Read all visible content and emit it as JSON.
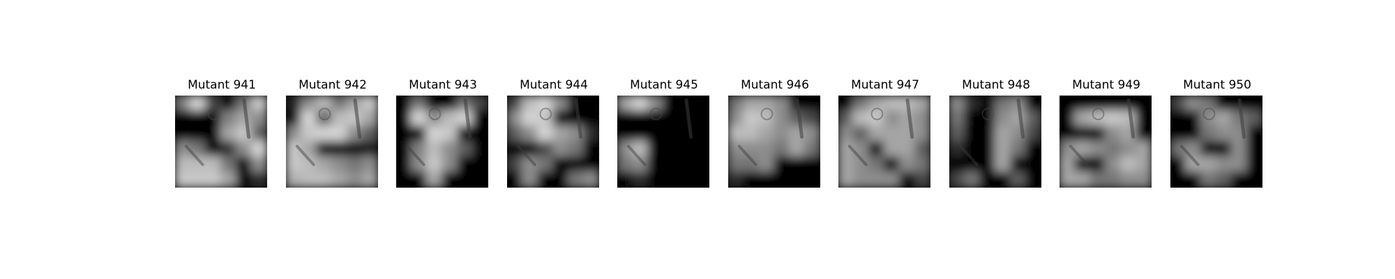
{
  "panels": [
    {
      "title": "Mutant 941",
      "pattern": [
        [
          0.55,
          0.9,
          0.3,
          0.0,
          0.5,
          0.85
        ],
        [
          0.0,
          0.0,
          0.0,
          0.55,
          0.7,
          0.6
        ],
        [
          0.0,
          0.0,
          0.0,
          0.7,
          0.85,
          0.4
        ],
        [
          0.6,
          0.5,
          0.0,
          0.2,
          0.6,
          0.9
        ],
        [
          0.8,
          0.8,
          0.8,
          0.5,
          0.0,
          0.6
        ],
        [
          0.85,
          0.85,
          0.85,
          0.7,
          0.0,
          0.2
        ]
      ]
    },
    {
      "title": "Mutant 942",
      "pattern": [
        [
          0.15,
          0.6,
          0.8,
          0.5,
          0.7,
          0.85
        ],
        [
          0.1,
          0.9,
          0.4,
          0.8,
          0.85,
          0.7
        ],
        [
          0.6,
          0.85,
          0.9,
          0.9,
          0.6,
          0.4
        ],
        [
          0.85,
          0.7,
          0.0,
          0.0,
          0.0,
          0.1
        ],
        [
          0.85,
          0.8,
          0.7,
          0.6,
          0.5,
          0.6
        ],
        [
          0.75,
          0.8,
          0.8,
          0.7,
          0.6,
          0.7
        ]
      ]
    },
    {
      "title": "Mutant 943",
      "pattern": [
        [
          0.0,
          0.5,
          0.0,
          0.0,
          0.5,
          0.3
        ],
        [
          0.0,
          0.9,
          0.6,
          0.8,
          0.9,
          0.0
        ],
        [
          0.0,
          0.0,
          0.9,
          0.85,
          0.0,
          0.0
        ],
        [
          0.0,
          0.55,
          0.8,
          0.6,
          0.4,
          0.0
        ],
        [
          0.0,
          0.6,
          0.85,
          0.6,
          0.0,
          0.0
        ],
        [
          0.0,
          0.0,
          0.7,
          0.0,
          0.0,
          0.0
        ]
      ]
    },
    {
      "title": "Mutant 944",
      "pattern": [
        [
          0.3,
          0.8,
          0.9,
          0.6,
          0.0,
          0.0
        ],
        [
          0.6,
          0.9,
          0.85,
          0.0,
          0.0,
          0.0
        ],
        [
          0.4,
          0.6,
          0.9,
          0.7,
          0.6,
          0.2
        ],
        [
          0.0,
          0.0,
          0.3,
          0.6,
          0.5,
          0.0
        ],
        [
          0.3,
          0.6,
          0.5,
          0.0,
          0.0,
          0.0
        ],
        [
          0.0,
          0.6,
          0.0,
          0.0,
          0.5,
          0.6
        ]
      ]
    },
    {
      "title": "Mutant 945",
      "pattern": [
        [
          0.7,
          0.9,
          0.6,
          0.0,
          0.0,
          0.0
        ],
        [
          0.0,
          0.0,
          0.0,
          0.0,
          0.0,
          0.0
        ],
        [
          0.0,
          0.0,
          0.0,
          0.0,
          0.0,
          0.0
        ],
        [
          0.6,
          0.8,
          0.0,
          0.0,
          0.0,
          0.0
        ],
        [
          0.5,
          0.6,
          0.0,
          0.0,
          0.0,
          0.0
        ],
        [
          0.0,
          0.2,
          0.0,
          0.0,
          0.0,
          0.0
        ]
      ]
    },
    {
      "title": "Mutant 946",
      "pattern": [
        [
          0.5,
          0.7,
          0.7,
          0.6,
          0.0,
          0.0
        ],
        [
          0.6,
          0.85,
          0.8,
          0.6,
          0.4,
          0.3
        ],
        [
          0.8,
          0.8,
          0.7,
          0.6,
          0.7,
          0.6
        ],
        [
          0.6,
          0.6,
          0.6,
          0.5,
          0.7,
          0.5
        ],
        [
          0.5,
          0.5,
          0.6,
          0.0,
          0.0,
          0.0
        ],
        [
          0.2,
          0.0,
          0.0,
          0.0,
          0.0,
          0.0
        ]
      ]
    },
    {
      "title": "Mutant 947",
      "pattern": [
        [
          0.0,
          0.5,
          0.7,
          0.8,
          0.8,
          0.7
        ],
        [
          0.4,
          0.8,
          0.85,
          0.6,
          0.7,
          0.6
        ],
        [
          0.6,
          0.4,
          0.7,
          0.7,
          0.7,
          0.6
        ],
        [
          0.7,
          0.6,
          0.0,
          0.7,
          0.7,
          0.4
        ],
        [
          0.7,
          0.6,
          0.5,
          0.0,
          0.6,
          0.5
        ],
        [
          0.7,
          0.6,
          0.6,
          0.6,
          0.0,
          0.3
        ]
      ]
    },
    {
      "title": "Mutant 948",
      "pattern": [
        [
          0.6,
          0.2,
          0.0,
          0.5,
          0.6,
          0.0
        ],
        [
          0.5,
          0.0,
          0.0,
          0.6,
          0.7,
          0.4
        ],
        [
          0.4,
          0.0,
          0.0,
          0.7,
          0.6,
          0.3
        ],
        [
          0.2,
          0.0,
          0.0,
          0.7,
          0.5,
          0.0
        ],
        [
          0.0,
          0.0,
          0.0,
          0.7,
          0.0,
          0.0
        ],
        [
          0.3,
          0.5,
          0.0,
          0.0,
          0.4,
          0.0
        ]
      ]
    },
    {
      "title": "Mutant 949",
      "pattern": [
        [
          0.0,
          0.0,
          0.0,
          0.0,
          0.0,
          0.0
        ],
        [
          0.0,
          0.7,
          0.8,
          0.85,
          0.8,
          0.0
        ],
        [
          0.0,
          0.0,
          0.0,
          0.6,
          0.7,
          0.0
        ],
        [
          0.6,
          0.7,
          0.6,
          0.5,
          0.6,
          0.7
        ],
        [
          0.7,
          0.0,
          0.0,
          0.6,
          0.8,
          0.7
        ],
        [
          0.7,
          0.7,
          0.5,
          0.5,
          0.6,
          0.6
        ]
      ]
    },
    {
      "title": "Mutant 950",
      "pattern": [
        [
          0.3,
          0.6,
          0.5,
          0.0,
          0.0,
          0.0
        ],
        [
          0.0,
          0.0,
          0.6,
          0.7,
          0.5,
          0.4
        ],
        [
          0.0,
          0.0,
          0.5,
          0.6,
          0.6,
          0.0
        ],
        [
          0.5,
          0.6,
          0.0,
          0.0,
          0.6,
          0.0
        ],
        [
          0.0,
          0.7,
          0.7,
          0.6,
          0.6,
          0.0
        ],
        [
          0.0,
          0.0,
          0.5,
          0.4,
          0.0,
          0.0
        ]
      ]
    }
  ]
}
